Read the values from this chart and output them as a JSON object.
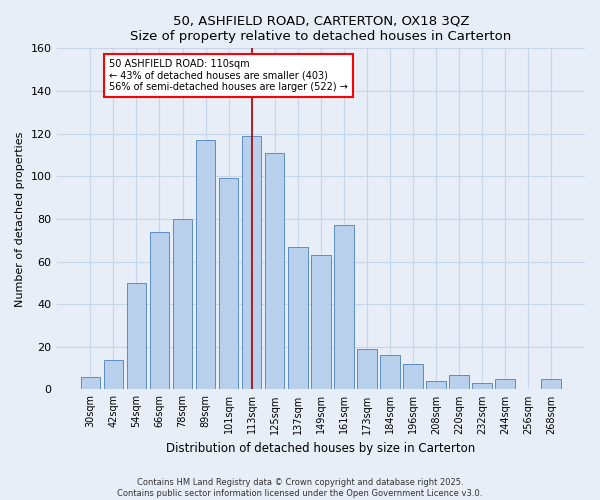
{
  "title": "50, ASHFIELD ROAD, CARTERTON, OX18 3QZ",
  "subtitle": "Size of property relative to detached houses in Carterton",
  "xlabel": "Distribution of detached houses by size in Carterton",
  "ylabel": "Number of detached properties",
  "bar_labels": [
    "30sqm",
    "42sqm",
    "54sqm",
    "66sqm",
    "78sqm",
    "89sqm",
    "101sqm",
    "113sqm",
    "125sqm",
    "137sqm",
    "149sqm",
    "161sqm",
    "173sqm",
    "184sqm",
    "196sqm",
    "208sqm",
    "220sqm",
    "232sqm",
    "244sqm",
    "256sqm",
    "268sqm"
  ],
  "bar_values": [
    6,
    14,
    50,
    74,
    80,
    117,
    99,
    119,
    111,
    67,
    63,
    77,
    19,
    16,
    12,
    4,
    7,
    3,
    5,
    0,
    5
  ],
  "bar_color": "#b8d0eb",
  "bar_edge_color": "#5b8ec4",
  "vline_x_index": 7,
  "vline_color": "#aa0000",
  "ylim": [
    0,
    160
  ],
  "yticks": [
    0,
    20,
    40,
    60,
    80,
    100,
    120,
    140,
    160
  ],
  "annotation_title": "50 ASHFIELD ROAD: 110sqm",
  "annotation_line1": "← 43% of detached houses are smaller (403)",
  "annotation_line2": "56% of semi-detached houses are larger (522) →",
  "footer_line1": "Contains HM Land Registry data © Crown copyright and database right 2025.",
  "footer_line2": "Contains public sector information licensed under the Open Government Licence v3.0.",
  "bg_color": "#e8eef8",
  "grid_color": "#c8d4e8"
}
